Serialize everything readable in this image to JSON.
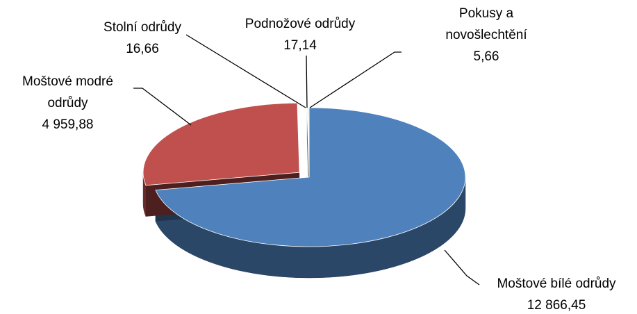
{
  "chart_data": {
    "type": "pie",
    "categories": [
      "Moštové bílé odrůdy",
      "Moštové modré odrůdy",
      "Stolní odrůdy",
      "Podnožové odrůdy",
      "Pokusy a novošlechtění"
    ],
    "values": [
      12866.45,
      4959.88,
      16.66,
      17.14,
      5.66
    ],
    "value_labels": [
      "12 866,45",
      "4 959,88",
      "16,66",
      "17,14",
      "5,66"
    ],
    "colors": [
      "#4f81bd",
      "#c0504d",
      "#f2f2e6",
      "#9bbb59",
      "#8064a2"
    ]
  }
}
